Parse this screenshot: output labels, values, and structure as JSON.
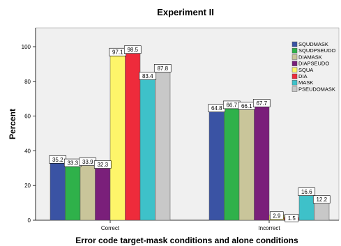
{
  "chart_data": {
    "type": "bar",
    "title": "Experiment II",
    "xlabel": "Error code target-mask conditions and alone conditions",
    "ylabel": "Percent",
    "ylim": [
      0,
      110
    ],
    "yticks": [
      0,
      20,
      40,
      60,
      80,
      100
    ],
    "grid": false,
    "legend_position": "right",
    "categories": [
      "Correct",
      "Incorrect"
    ],
    "series": [
      {
        "name": "SQUDMASK",
        "color": "#3a53a4",
        "values": [
          35.2,
          64.8
        ]
      },
      {
        "name": "SQUDPSEUDO",
        "color": "#2fb14a",
        "values": [
          33.3,
          66.7
        ]
      },
      {
        "name": "DIAMASK",
        "color": "#c9c59a",
        "values": [
          33.9,
          66.1
        ]
      },
      {
        "name": "DIAPSEUDO",
        "color": "#7a1f7a",
        "values": [
          32.3,
          67.7
        ]
      },
      {
        "name": "SQUA",
        "color": "#fdf56a",
        "values": [
          97.1,
          2.9
        ]
      },
      {
        "name": "DIA",
        "color": "#ee2b3b",
        "values": [
          98.5,
          1.5
        ]
      },
      {
        "name": "MASK",
        "color": "#3ec1c9",
        "values": [
          83.4,
          16.6
        ]
      },
      {
        "name": "PSEUDOMASK",
        "color": "#c8c8c8",
        "values": [
          87.8,
          12.2
        ]
      }
    ],
    "data_labels": [
      [
        "35.2",
        "33.3",
        "33.9",
        "32.3",
        "97.1",
        "98.5",
        "83.4",
        "87.8"
      ],
      [
        "64.8",
        "66.7",
        "66.1",
        "67.7",
        "2.9",
        "1.5",
        "16.6",
        "12.2"
      ]
    ]
  }
}
